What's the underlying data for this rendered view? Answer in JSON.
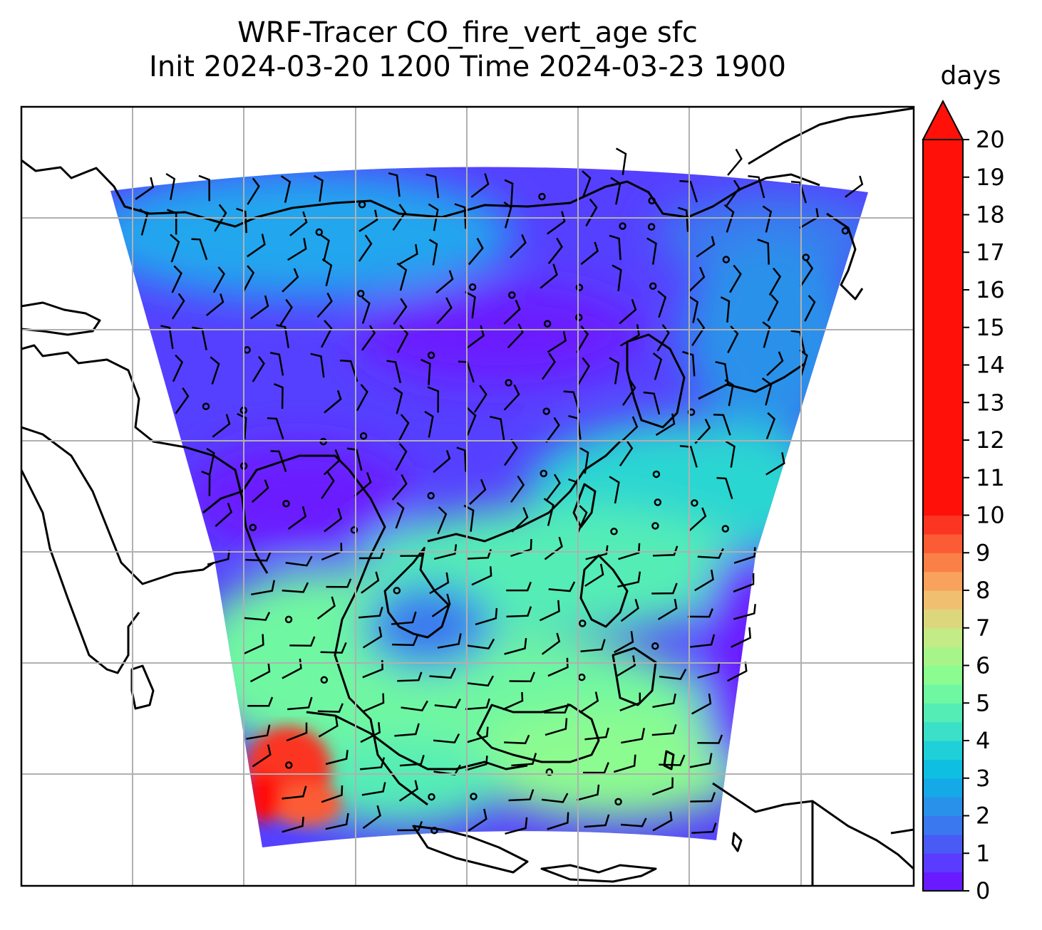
{
  "chart_data": {
    "type": "heatmap",
    "title_line1": "WRF-Tracer CO_fire_vert_age sfc",
    "title_line2": "Init 2024-03-20 1200 Time 2024-03-23 1900",
    "colorbar": {
      "label": "days",
      "min": 0,
      "max": 20,
      "step": 1,
      "extend": "max",
      "ticks": [
        0,
        1,
        2,
        3,
        4,
        5,
        6,
        7,
        8,
        9,
        10,
        11,
        12,
        13,
        14,
        15,
        16,
        17,
        18,
        19,
        20
      ],
      "colors": [
        "#6a1aff",
        "#5a3bff",
        "#4a5af5",
        "#3a78ef",
        "#2a91ea",
        "#16a9e8",
        "#0fbfe2",
        "#1fd0d8",
        "#3ae0c8",
        "#55edb6",
        "#6ff7a2",
        "#8cfb90",
        "#a7f58a",
        "#c3eb86",
        "#dcd77c",
        "#f0c070",
        "#f8a25c",
        "#fa8048",
        "#fb5c35",
        "#fb3522",
        "#ff1008"
      ],
      "extend_color": "#ff1008"
    },
    "map": {
      "gridlines": true,
      "coastlines": true,
      "wind_barbs": true
    }
  }
}
